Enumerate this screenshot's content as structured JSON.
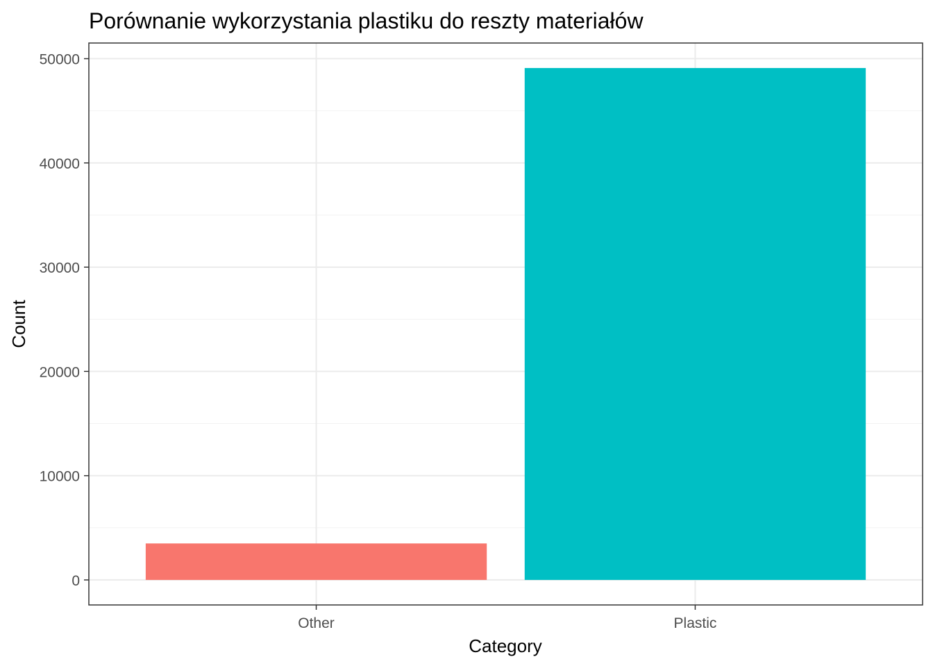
{
  "chart_data": {
    "type": "bar",
    "title": "Porównanie wykorzystania plastiku do reszty materiałów",
    "xlabel": "Category",
    "ylabel": "Count",
    "categories": [
      "Other",
      "Plastic"
    ],
    "values": [
      3500,
      49100
    ],
    "colors": [
      "#F8766D",
      "#00BFC4"
    ],
    "ylim": [
      -2400,
      51500
    ],
    "yticks": [
      0,
      10000,
      20000,
      30000,
      40000,
      50000
    ],
    "ytick_labels": [
      "0",
      "10000",
      "20000",
      "30000",
      "40000",
      "50000"
    ],
    "grid": true,
    "legend": "none"
  }
}
